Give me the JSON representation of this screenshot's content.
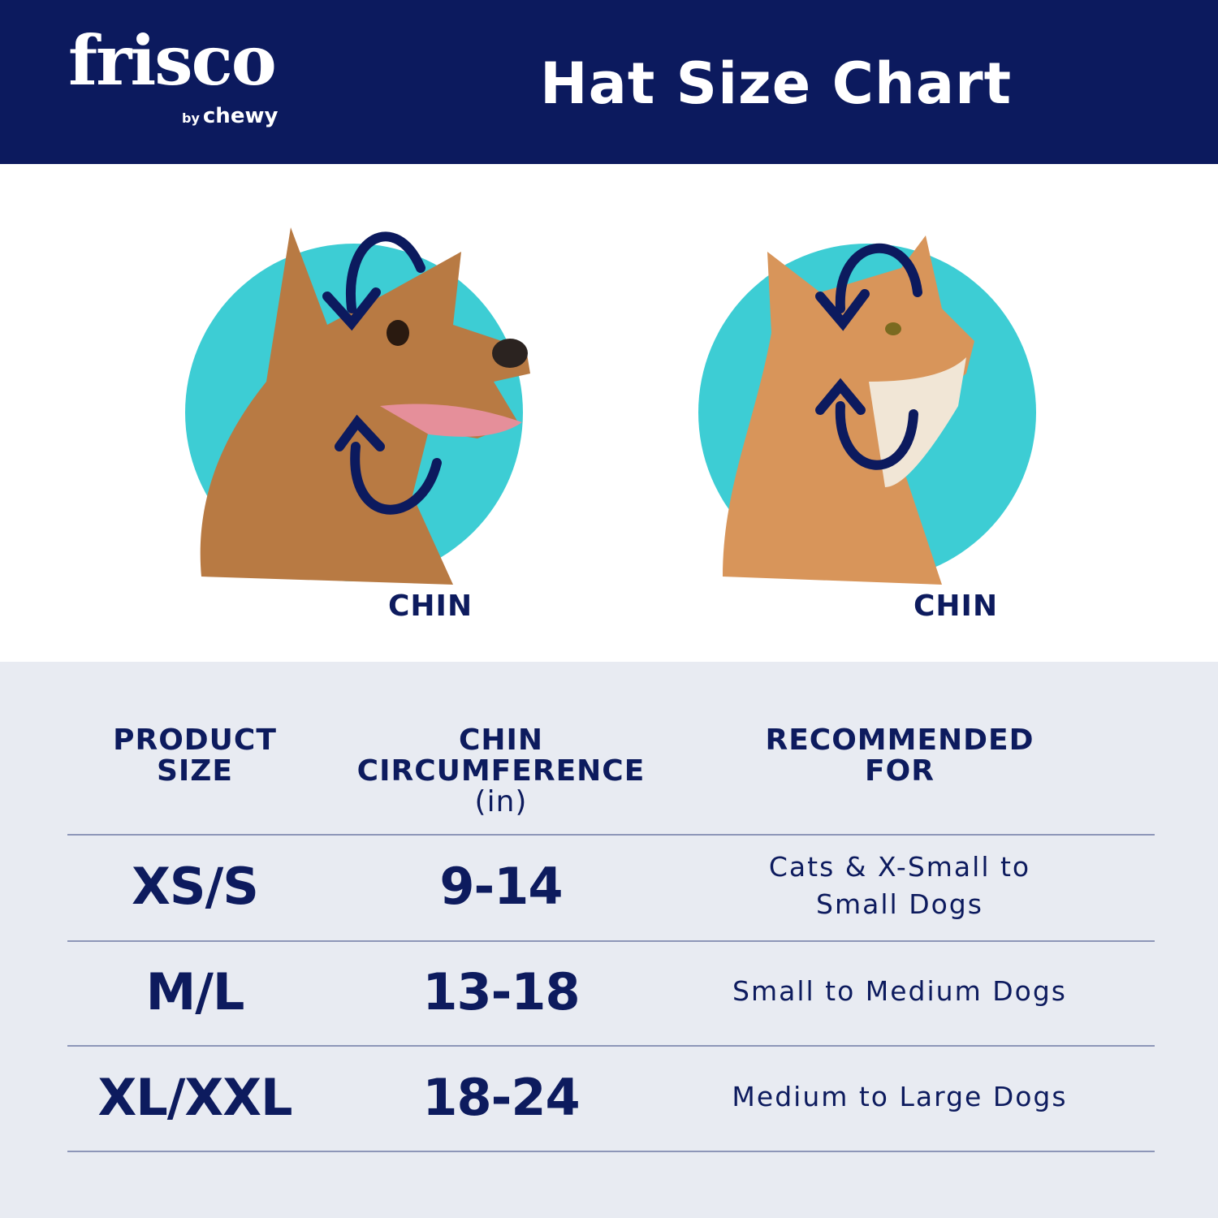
{
  "header": {
    "logo_text": "frisco",
    "logo_by": "by",
    "logo_sub": "chewy",
    "title": "Hat Size Chart"
  },
  "colors": {
    "navy": "#0c1a5e",
    "teal": "#3dcdd4",
    "table_bg": "#e8ebf2"
  },
  "illustrations": [
    {
      "animal": "dog",
      "label": "CHIN"
    },
    {
      "animal": "cat",
      "label": "CHIN"
    }
  ],
  "table": {
    "headers": [
      {
        "line1": "PRODUCT",
        "line2": "SIZE"
      },
      {
        "line1": "CHIN",
        "line2": "CIRCUMFERENCE",
        "unit": "(in)"
      },
      {
        "line1": "RECOMMENDED",
        "line2": "FOR"
      }
    ],
    "rows": [
      {
        "size": "XS/S",
        "chin": "9-14",
        "recommended": "Cats & X-Small to Small Dogs"
      },
      {
        "size": "M/L",
        "chin": "13-18",
        "recommended": "Small to Medium Dogs"
      },
      {
        "size": "XL/XXL",
        "chin": "18-24",
        "recommended": "Medium to Large Dogs"
      }
    ]
  }
}
